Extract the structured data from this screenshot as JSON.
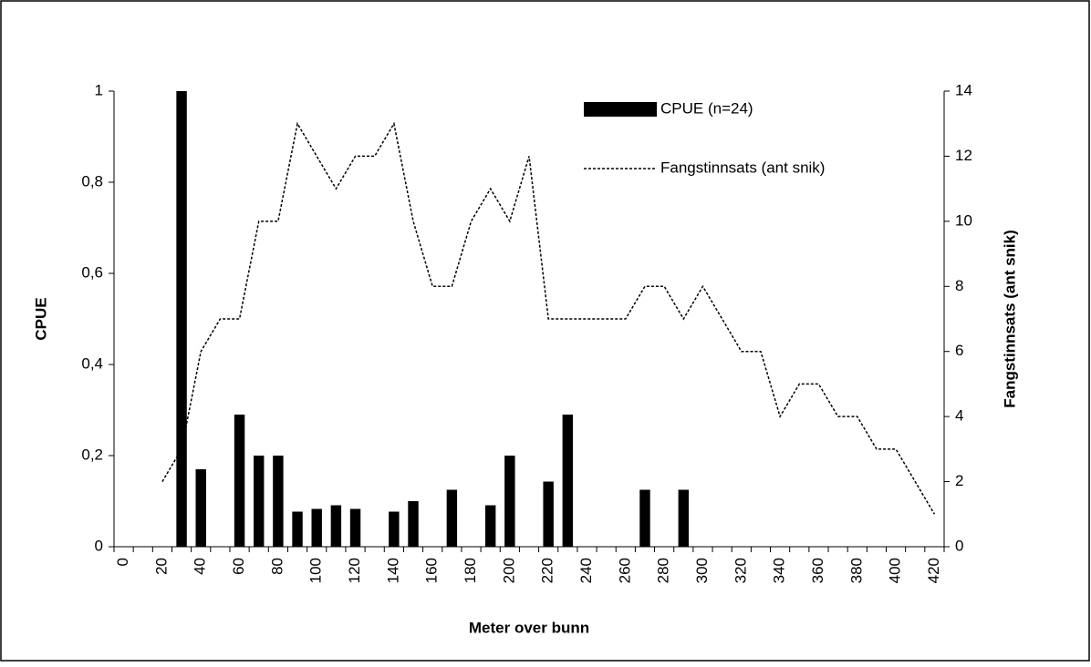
{
  "chart_data": {
    "type": "bar_line",
    "x_label": "Meter over bunn",
    "y_label": "CPUE",
    "y2_label": "Fangstinnsats (ant snik)",
    "categories": [
      "0",
      null,
      "20",
      null,
      "40",
      null,
      "60",
      null,
      "80",
      null,
      "100",
      null,
      "120",
      null,
      "140",
      null,
      "160",
      null,
      "180",
      null,
      "200",
      null,
      "220",
      null,
      "240",
      null,
      "260",
      null,
      "280",
      null,
      "300",
      null,
      "320",
      null,
      "340",
      null,
      "360",
      null,
      "380",
      null,
      "400",
      null,
      "420"
    ],
    "series": [
      {
        "name": "CPUE (n=24)",
        "type": "bar",
        "color": "#000000",
        "values": [
          null,
          null,
          null,
          1.0,
          0.17,
          null,
          0.29,
          0.2,
          0.2,
          0.077,
          0.083,
          0.091,
          0.083,
          null,
          0.077,
          0.1,
          null,
          0.125,
          null,
          0.091,
          0.2,
          null,
          0.143,
          0.29,
          null,
          null,
          null,
          0.125,
          null,
          0.125,
          null,
          null,
          null,
          null,
          null,
          null,
          null,
          null,
          null,
          null,
          null,
          null,
          null
        ]
      },
      {
        "name": "Fangstinnsats (ant snik)",
        "type": "line",
        "axis": "y2",
        "color": "#000000",
        "values": [
          null,
          null,
          2,
          3,
          6,
          7,
          7,
          10,
          10,
          13,
          12,
          11,
          12,
          12,
          13,
          10,
          8,
          8,
          10,
          11,
          10,
          12,
          7,
          7,
          7,
          7,
          7,
          8,
          8,
          7,
          8,
          7,
          6,
          6,
          4,
          5,
          5,
          4,
          4,
          3,
          3,
          2,
          1
        ]
      }
    ],
    "ylim": [
      0,
      1
    ],
    "yticks": [
      0,
      {
        "value": 0.2,
        "label": "0,2"
      },
      {
        "value": 0.4,
        "label": "0,4"
      },
      {
        "value": 0.6,
        "label": "0,6"
      },
      {
        "value": 0.8,
        "label": "0,8"
      },
      1
    ],
    "y2lim": [
      0,
      14
    ],
    "y2ticks": [
      0,
      2,
      4,
      6,
      8,
      10,
      12,
      14
    ],
    "grid": false,
    "legend": "top-right"
  }
}
